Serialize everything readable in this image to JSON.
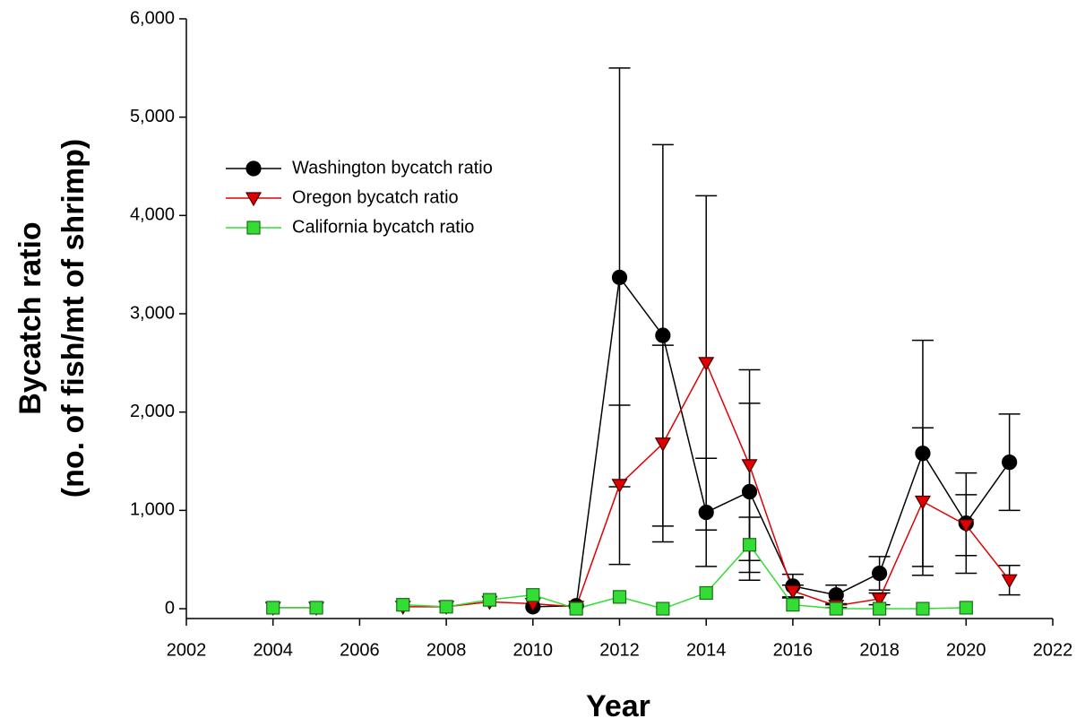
{
  "chart_data": {
    "type": "line",
    "xlabel": "Year",
    "ylabel": [
      "Bycatch ratio",
      "(no. of fish/mt of shrimp)"
    ],
    "x": [
      2004,
      2005,
      2006,
      2007,
      2008,
      2009,
      2010,
      2011,
      2012,
      2013,
      2014,
      2015,
      2016,
      2017,
      2018,
      2019,
      2020,
      2021
    ],
    "series": [
      {
        "name": "Washington bycatch ratio",
        "color": "#000000",
        "marker": "circle",
        "values": [
          null,
          null,
          null,
          null,
          null,
          null,
          20,
          30,
          3370,
          2780,
          980,
          1190,
          230,
          140,
          360,
          1580,
          870,
          1490
        ],
        "errors": [
          null,
          null,
          null,
          null,
          null,
          null,
          null,
          null,
          2130,
          1940,
          550,
          900,
          120,
          100,
          170,
          1150,
          510,
          490
        ]
      },
      {
        "name": "Oregon bycatch ratio",
        "color": "#e00000",
        "marker": "triangle-down",
        "values": [
          10,
          10,
          null,
          20,
          20,
          70,
          50,
          20,
          1260,
          1680,
          2500,
          1460,
          180,
          30,
          100,
          1090,
          850,
          290
        ],
        "errors": [
          null,
          null,
          null,
          null,
          null,
          null,
          null,
          null,
          810,
          1000,
          1700,
          970,
          60,
          20,
          60,
          750,
          310,
          150
        ]
      },
      {
        "name": "California bycatch ratio",
        "color": "#33dd33",
        "marker": "square",
        "values": [
          10,
          10,
          null,
          40,
          20,
          90,
          140,
          0,
          120,
          0,
          160,
          650,
          40,
          0,
          0,
          0,
          10,
          null
        ],
        "errors": [
          null,
          null,
          null,
          null,
          null,
          null,
          null,
          null,
          null,
          null,
          null,
          280,
          null,
          null,
          null,
          null,
          null,
          null
        ]
      }
    ],
    "xlim": [
      2002,
      2022
    ],
    "xticks": [
      2002,
      2004,
      2006,
      2008,
      2010,
      2012,
      2014,
      2016,
      2018,
      2020,
      2022
    ],
    "ylim": [
      -100,
      6000
    ],
    "yticks": [
      {
        "value": 0,
        "label": "0"
      },
      {
        "value": 1000,
        "label": "1,000"
      },
      {
        "value": 2000,
        "label": "2,000"
      },
      {
        "value": 3000,
        "label": "3,000"
      },
      {
        "value": 4000,
        "label": "4,000"
      },
      {
        "value": 5000,
        "label": "5,000"
      },
      {
        "value": 6000,
        "label": "6,000"
      }
    ],
    "legend": "upper left",
    "grid": false
  }
}
